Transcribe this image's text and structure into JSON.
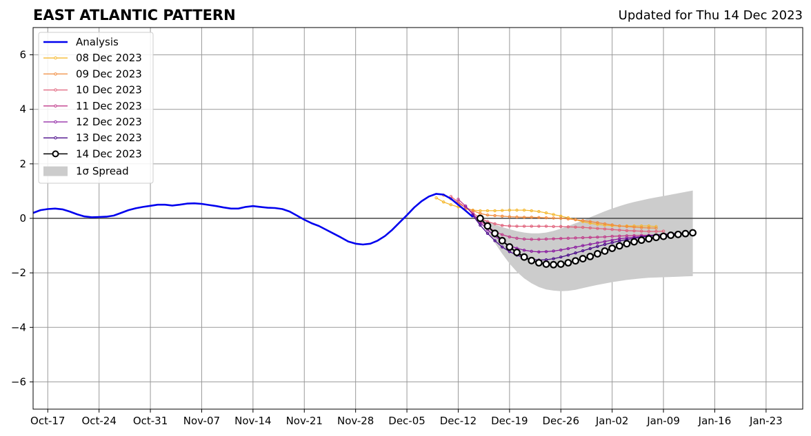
{
  "header": {
    "title": "EAST ATLANTIC PATTERN",
    "updated": "Updated for Thu 14 Dec 2023"
  },
  "chart_data": {
    "type": "line",
    "title": "EAST ATLANTIC PATTERN",
    "subtitle": "Updated for Thu 14 Dec 2023",
    "xlabel": "",
    "ylabel": "",
    "x_start_date": "2023-10-15",
    "xlim": [
      "2023-10-15",
      "2023-12-14",
      "2024-01-28"
    ],
    "ylim": [
      -7,
      7
    ],
    "grid": true,
    "legend_position": "top-left",
    "xticks": [
      "Oct-17",
      "Oct-24",
      "Oct-31",
      "Nov-07",
      "Nov-14",
      "Nov-21",
      "Nov-28",
      "Dec-05",
      "Dec-12",
      "Dec-19",
      "Dec-26",
      "Jan-02",
      "Jan-09",
      "Jan-16",
      "Jan-23"
    ],
    "yticks": [
      6,
      4,
      2,
      0,
      -2,
      -4,
      -6
    ],
    "ytick_labels": [
      "6",
      "4",
      "2",
      "0",
      "−2",
      "−4",
      "−6"
    ],
    "legend": [
      "Analysis",
      "08 Dec 2023",
      "09 Dec 2023",
      "10 Dec 2023",
      "11 Dec 2023",
      "12 Dec 2023",
      "13 Dec 2023",
      "14 Dec 2023",
      "1σ Spread"
    ],
    "analysis": {
      "name": "Analysis",
      "color": "#0000ee",
      "points": [
        [
          "2023-10-15",
          0.2
        ],
        [
          "2023-10-16",
          0.3
        ],
        [
          "2023-10-17",
          0.34
        ],
        [
          "2023-10-18",
          0.36
        ],
        [
          "2023-10-19",
          0.33
        ],
        [
          "2023-10-20",
          0.25
        ],
        [
          "2023-10-21",
          0.15
        ],
        [
          "2023-10-22",
          0.07
        ],
        [
          "2023-10-23",
          0.04
        ],
        [
          "2023-10-24",
          0.05
        ],
        [
          "2023-10-25",
          0.06
        ],
        [
          "2023-10-26",
          0.1
        ],
        [
          "2023-10-27",
          0.2
        ],
        [
          "2023-10-28",
          0.3
        ],
        [
          "2023-10-29",
          0.37
        ],
        [
          "2023-10-30",
          0.42
        ],
        [
          "2023-10-31",
          0.46
        ],
        [
          "2023-11-01",
          0.5
        ],
        [
          "2023-11-02",
          0.5
        ],
        [
          "2023-11-03",
          0.47
        ],
        [
          "2023-11-04",
          0.5
        ],
        [
          "2023-11-05",
          0.54
        ],
        [
          "2023-11-06",
          0.55
        ],
        [
          "2023-11-07",
          0.53
        ],
        [
          "2023-11-08",
          0.49
        ],
        [
          "2023-11-09",
          0.45
        ],
        [
          "2023-11-10",
          0.4
        ],
        [
          "2023-11-11",
          0.36
        ],
        [
          "2023-11-12",
          0.36
        ],
        [
          "2023-11-13",
          0.42
        ],
        [
          "2023-11-14",
          0.45
        ],
        [
          "2023-11-15",
          0.42
        ],
        [
          "2023-11-16",
          0.39
        ],
        [
          "2023-11-17",
          0.38
        ],
        [
          "2023-11-18",
          0.34
        ],
        [
          "2023-11-19",
          0.25
        ],
        [
          "2023-11-20",
          0.1
        ],
        [
          "2023-11-21",
          -0.05
        ],
        [
          "2023-11-22",
          -0.18
        ],
        [
          "2023-11-23",
          -0.28
        ],
        [
          "2023-11-24",
          -0.42
        ],
        [
          "2023-11-25",
          -0.56
        ],
        [
          "2023-11-26",
          -0.7
        ],
        [
          "2023-11-27",
          -0.85
        ],
        [
          "2023-11-28",
          -0.93
        ],
        [
          "2023-11-29",
          -0.96
        ],
        [
          "2023-11-30",
          -0.93
        ],
        [
          "2023-12-01",
          -0.82
        ],
        [
          "2023-12-02",
          -0.65
        ],
        [
          "2023-12-03",
          -0.42
        ],
        [
          "2023-12-04",
          -0.15
        ],
        [
          "2023-12-05",
          0.12
        ],
        [
          "2023-12-06",
          0.4
        ],
        [
          "2023-12-07",
          0.63
        ],
        [
          "2023-12-08",
          0.8
        ],
        [
          "2023-12-09",
          0.9
        ],
        [
          "2023-12-10",
          0.87
        ],
        [
          "2023-12-11",
          0.72
        ],
        [
          "2023-12-12",
          0.5
        ],
        [
          "2023-12-13",
          0.28
        ],
        [
          "2023-12-14",
          0.05
        ]
      ]
    },
    "series": [
      {
        "name": "08 Dec 2023",
        "color": "#f5b82e",
        "start": "2023-12-09",
        "values": [
          0.75,
          0.6,
          0.5,
          0.42,
          0.35,
          0.3,
          0.28,
          0.28,
          0.28,
          0.29,
          0.3,
          0.3,
          0.3,
          0.28,
          0.25,
          0.2,
          0.14,
          0.08,
          0.02,
          -0.05,
          -0.12,
          -0.18,
          -0.22,
          -0.25,
          -0.27,
          -0.28,
          -0.28,
          -0.28,
          -0.28,
          -0.28,
          -0.3
        ]
      },
      {
        "name": "09 Dec 2023",
        "color": "#f08a3c",
        "start": "2023-12-10",
        "values": [
          0.85,
          0.72,
          0.55,
          0.4,
          0.28,
          0.18,
          0.12,
          0.1,
          0.08,
          0.06,
          0.05,
          0.04,
          0.04,
          0.03,
          0.02,
          0.01,
          0.0,
          -0.02,
          -0.05,
          -0.08,
          -0.12,
          -0.16,
          -0.2,
          -0.24,
          -0.28,
          -0.3,
          -0.32,
          -0.34,
          -0.35,
          -0.36
        ]
      },
      {
        "name": "10 Dec 2023",
        "color": "#e0607a",
        "start": "2023-12-11",
        "values": [
          0.8,
          0.6,
          0.4,
          0.2,
          0.0,
          -0.12,
          -0.2,
          -0.26,
          -0.28,
          -0.29,
          -0.29,
          -0.29,
          -0.29,
          -0.29,
          -0.3,
          -0.3,
          -0.31,
          -0.32,
          -0.33,
          -0.35,
          -0.37,
          -0.39,
          -0.41,
          -0.43,
          -0.45,
          -0.46,
          -0.47,
          -0.48,
          -0.48,
          -0.47
        ]
      },
      {
        "name": "11 Dec 2023",
        "color": "#c03a8a",
        "start": "2023-12-12",
        "values": [
          0.7,
          0.45,
          0.15,
          -0.1,
          -0.3,
          -0.48,
          -0.6,
          -0.68,
          -0.73,
          -0.76,
          -0.77,
          -0.77,
          -0.76,
          -0.75,
          -0.74,
          -0.73,
          -0.72,
          -0.71,
          -0.7,
          -0.69,
          -0.68,
          -0.66,
          -0.65,
          -0.64,
          -0.63,
          -0.62,
          -0.62,
          -0.61,
          -0.6,
          -0.6
        ]
      },
      {
        "name": "12 Dec 2023",
        "color": "#8a1aa0",
        "start": "2023-12-13",
        "values": [
          0.45,
          0.15,
          -0.15,
          -0.42,
          -0.65,
          -0.85,
          -1.0,
          -1.1,
          -1.17,
          -1.21,
          -1.23,
          -1.22,
          -1.2,
          -1.16,
          -1.11,
          -1.06,
          -1.0,
          -0.95,
          -0.9,
          -0.85,
          -0.8,
          -0.75,
          -0.72,
          -0.69,
          -0.66,
          -0.63,
          -0.61,
          -0.59,
          -0.57,
          -0.55
        ]
      },
      {
        "name": "13 Dec 2023",
        "color": "#4a0a8a",
        "start": "2023-12-14",
        "values": [
          0.1,
          -0.25,
          -0.55,
          -0.82,
          -1.05,
          -1.22,
          -1.35,
          -1.45,
          -1.5,
          -1.53,
          -1.52,
          -1.48,
          -1.42,
          -1.35,
          -1.27,
          -1.19,
          -1.11,
          -1.03,
          -0.96,
          -0.89,
          -0.83,
          -0.78,
          -0.73,
          -0.69,
          -0.65,
          -0.62,
          -0.59,
          -0.57,
          -0.55,
          -0.53
        ]
      },
      {
        "name": "14 Dec 2023",
        "color": "#000000",
        "start": "2023-12-15",
        "marker": "open-circle",
        "values": [
          0.0,
          -0.28,
          -0.55,
          -0.82,
          -1.05,
          -1.25,
          -1.42,
          -1.55,
          -1.63,
          -1.68,
          -1.7,
          -1.68,
          -1.63,
          -1.56,
          -1.48,
          -1.4,
          -1.3,
          -1.2,
          -1.1,
          -1.01,
          -0.93,
          -0.86,
          -0.8,
          -0.75,
          -0.7,
          -0.66,
          -0.62,
          -0.59,
          -0.56,
          -0.53
        ]
      }
    ],
    "spread": {
      "name": "1σ Spread",
      "color": "#cccccc",
      "start": "2023-12-15",
      "upper": [
        0.0,
        -0.12,
        -0.22,
        -0.32,
        -0.4,
        -0.47,
        -0.52,
        -0.55,
        -0.55,
        -0.52,
        -0.46,
        -0.38,
        -0.28,
        -0.18,
        -0.08,
        0.04,
        0.15,
        0.26,
        0.36,
        0.45,
        0.53,
        0.6,
        0.66,
        0.72,
        0.77,
        0.82,
        0.87,
        0.92,
        0.97,
        1.02
      ],
      "lower": [
        0.0,
        -0.45,
        -0.9,
        -1.3,
        -1.66,
        -1.96,
        -2.2,
        -2.38,
        -2.52,
        -2.61,
        -2.65,
        -2.67,
        -2.66,
        -2.62,
        -2.56,
        -2.5,
        -2.44,
        -2.39,
        -2.34,
        -2.3,
        -2.26,
        -2.23,
        -2.2,
        -2.18,
        -2.17,
        -2.16,
        -2.15,
        -2.14,
        -2.13,
        -2.12
      ]
    }
  }
}
